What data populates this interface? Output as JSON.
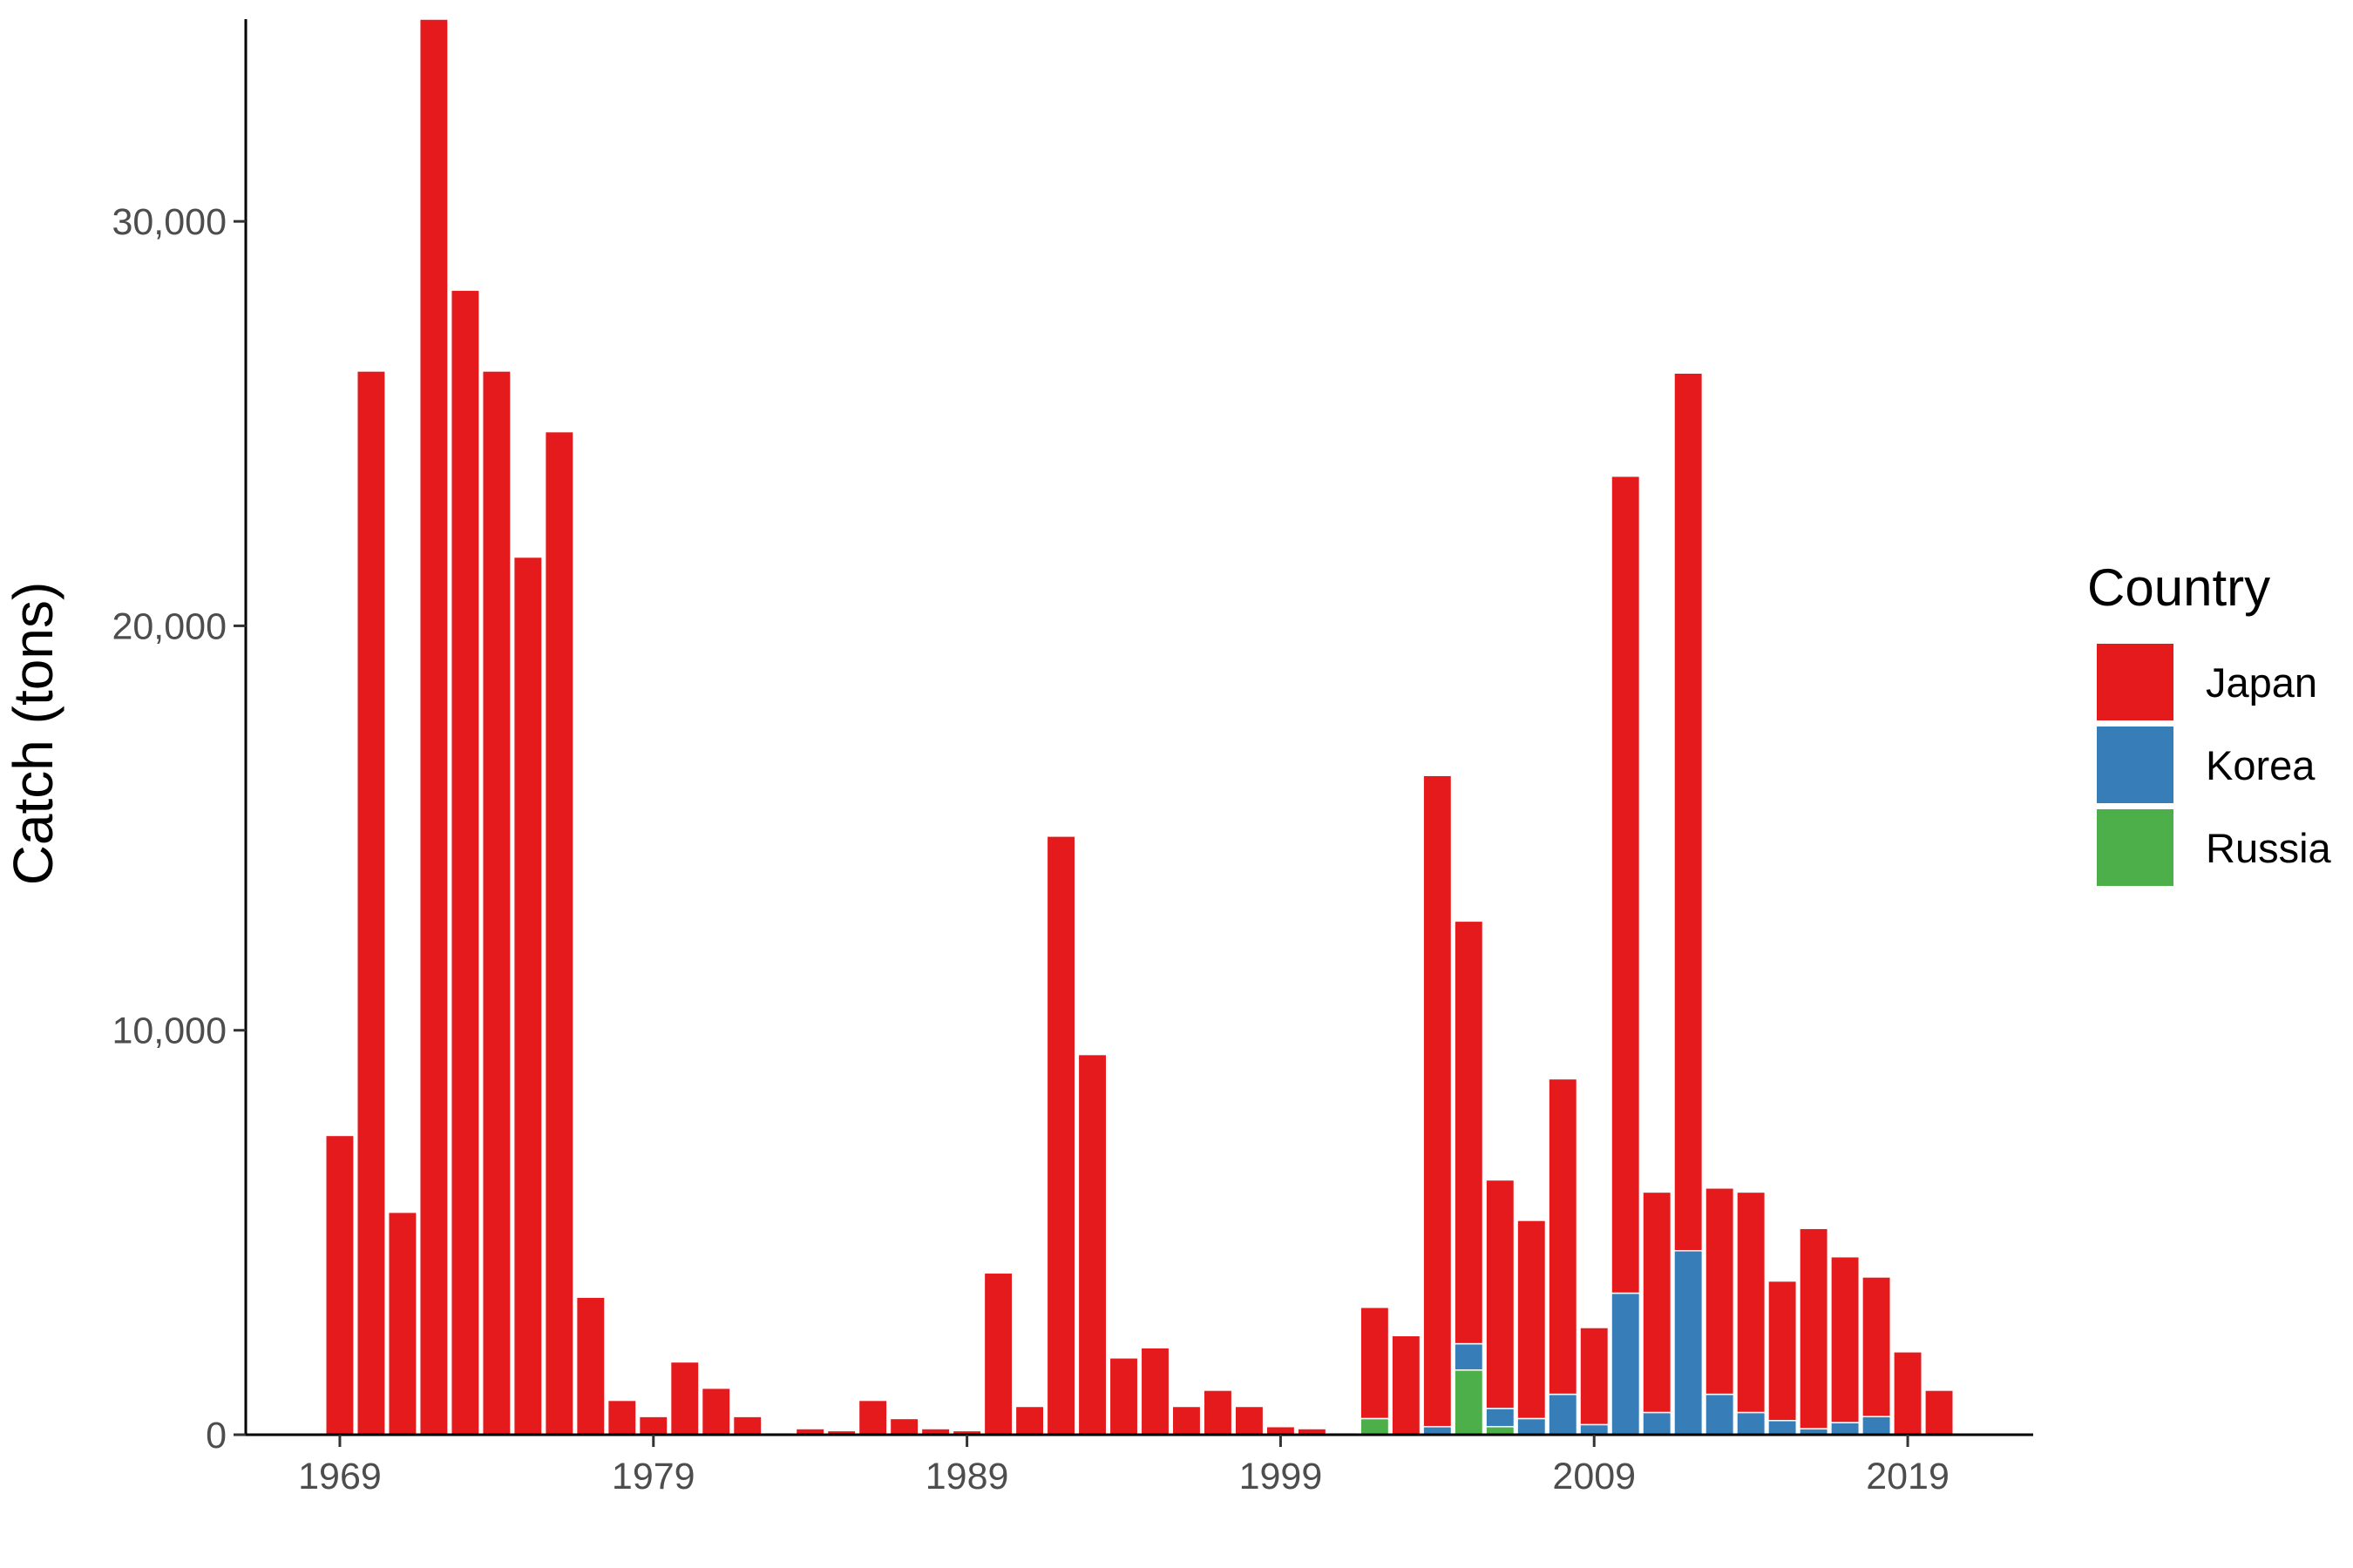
{
  "chart_data": {
    "type": "bar",
    "stacked": true,
    "title": "",
    "xlabel": "",
    "ylabel": "Catch (tons)",
    "ylim": [
      0,
      35000
    ],
    "xlim": [
      1966,
      2023
    ],
    "x_ticks": [
      1969,
      1979,
      1989,
      1999,
      2009,
      2019
    ],
    "y_ticks": [
      0,
      10000,
      20000,
      30000
    ],
    "y_tick_labels": [
      "0",
      "10,000",
      "20,000",
      "30,000"
    ],
    "grid": false,
    "legend": {
      "title": "Country",
      "position": "right"
    },
    "x": [
      1969,
      1970,
      1971,
      1972,
      1973,
      1974,
      1975,
      1976,
      1977,
      1978,
      1979,
      1980,
      1981,
      1982,
      1983,
      1984,
      1985,
      1986,
      1987,
      1988,
      1989,
      1990,
      1991,
      1992,
      1993,
      1994,
      1995,
      1996,
      1997,
      1998,
      1999,
      2000,
      2001,
      2002,
      2003,
      2004,
      2005,
      2006,
      2007,
      2008,
      2009,
      2010,
      2011,
      2012,
      2013,
      2014,
      2015,
      2016,
      2017,
      2018,
      2019,
      2020
    ],
    "series": [
      {
        "name": "Russia",
        "color": "#4DAF4A",
        "values": [
          0,
          0,
          0,
          0,
          0,
          0,
          0,
          0,
          0,
          0,
          0,
          0,
          0,
          0,
          0,
          0,
          0,
          0,
          0,
          0,
          0,
          0,
          0,
          0,
          0,
          0,
          0,
          0,
          0,
          0,
          0,
          0,
          0,
          400,
          0,
          0,
          1600,
          200,
          0,
          0,
          0,
          0,
          0,
          0,
          0,
          0,
          0,
          0,
          0,
          0,
          0,
          0
        ]
      },
      {
        "name": "Korea",
        "color": "#377EB8",
        "values": [
          0,
          0,
          0,
          0,
          0,
          0,
          0,
          0,
          0,
          0,
          0,
          0,
          0,
          0,
          0,
          0,
          0,
          0,
          0,
          0,
          0,
          0,
          0,
          0,
          0,
          0,
          0,
          0,
          0,
          0,
          0,
          0,
          0,
          0,
          0,
          200,
          650,
          450,
          400,
          1000,
          250,
          3500,
          550,
          4550,
          1000,
          550,
          350,
          150,
          300,
          450,
          0,
          0
        ]
      },
      {
        "name": "Japan",
        "color": "#E41A1C",
        "values": [
          7400,
          26300,
          5500,
          35000,
          28300,
          26300,
          21700,
          24800,
          3400,
          850,
          450,
          1800,
          1150,
          450,
          50,
          150,
          100,
          850,
          400,
          150,
          100,
          4000,
          700,
          14800,
          9400,
          1900,
          2150,
          700,
          1100,
          700,
          200,
          150,
          50,
          2750,
          2450,
          16100,
          10450,
          5650,
          4900,
          7800,
          2400,
          20200,
          5450,
          21700,
          5100,
          5450,
          3450,
          4950,
          4100,
          3450,
          2050,
          1100
        ]
      }
    ]
  }
}
